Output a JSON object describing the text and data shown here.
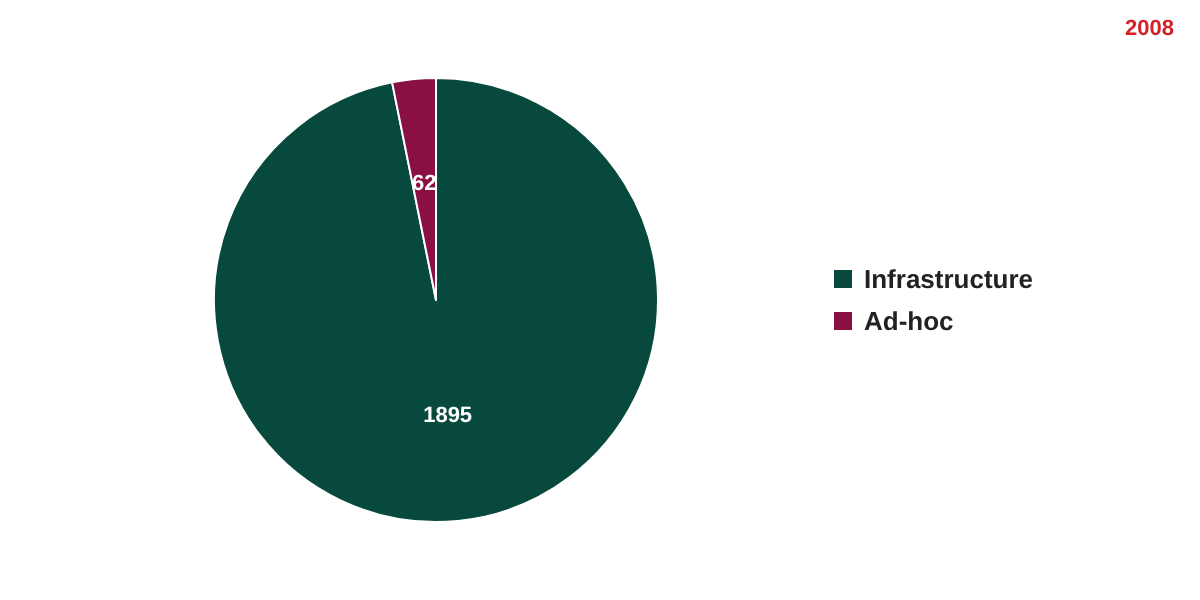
{
  "chart_data": {
    "type": "pie",
    "categories": [
      "Infrastructure",
      "Ad-hoc"
    ],
    "values": [
      1895,
      62
    ],
    "colors": [
      "#074a3d",
      "#8a1042"
    ],
    "data_labels": true,
    "legend": "right",
    "annotations": [
      "2008"
    ]
  }
}
